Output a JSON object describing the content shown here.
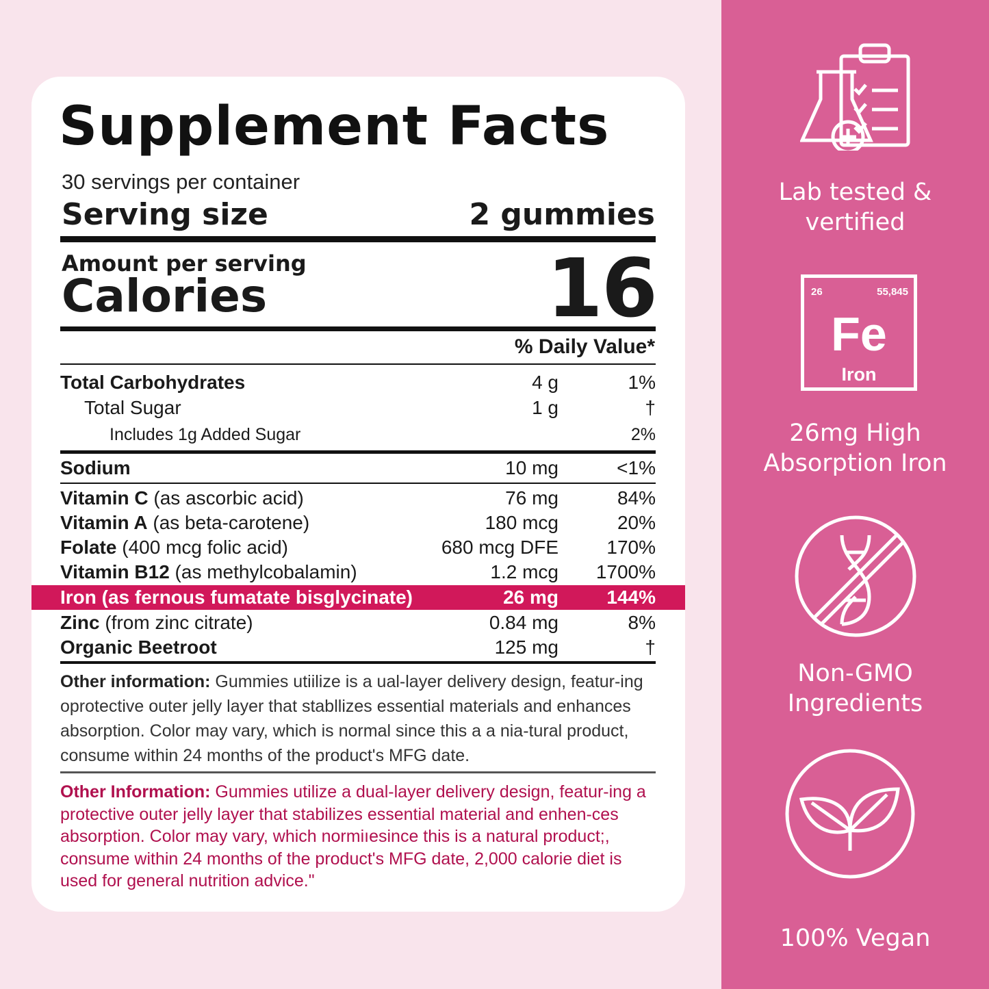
{
  "facts": {
    "title": "Supplement Facts",
    "servings": "30 servings per container",
    "serving_size_label": "Serving size",
    "serving_size_value": "2 gummies",
    "amount_per_serving": "Amount per serving",
    "calories_label": "Calories",
    "calories_value": "16",
    "daily_value_header": "% Daily Value*",
    "rows": [
      {
        "bold": "Total Carbohydrates",
        "rest": "",
        "amount": "4 g",
        "dv": "1%"
      },
      {
        "bold": "",
        "rest": "Total Sugar",
        "amount": "1 g",
        "dv": "†"
      },
      {
        "bold": "",
        "rest": "Includes 1g Added Sugar",
        "amount": "",
        "dv": "2%"
      },
      {
        "bold": "Sodium",
        "rest": "",
        "amount": "10 mg",
        "dv": "<1%"
      },
      {
        "bold": "Vitamin C",
        "rest": " (as ascorbic acid)",
        "amount": "76 mg",
        "dv": "84%"
      },
      {
        "bold": "Vitamin A",
        "rest": " (as beta-carotene)",
        "amount": "180 mcg",
        "dv": "20%"
      },
      {
        "bold": "Folate",
        "rest": " (400 mcg folic acid)",
        "amount": "680 mcg DFE",
        "dv": "170%"
      },
      {
        "bold": "Vitamin B12",
        "rest": " (as methylcobalamin)",
        "amount": "1.2 mcg",
        "dv": "1700%"
      },
      {
        "bold": "Iron (as fernous fumatate bisglycinate)",
        "rest": "",
        "amount": "26 mg",
        "dv": "144%"
      },
      {
        "bold": "Zinc",
        "rest": " (from zinc citrate)",
        "amount": "0.84 mg",
        "dv": "8%"
      },
      {
        "bold": "Organic Beetroot",
        "rest": "",
        "amount": "125 mg",
        "dv": "†"
      }
    ],
    "other_info_1_label": "Other information:",
    "other_info_1_text": " Gummies utiilize is a ual-layer delivery design, featur-ing oprotective outer jelly layer that stabllizes essential materials and enhances absorption. Color may vary, which is normal since this a a nia-tural product, consume within 24 months of the product's MFG date.",
    "other_info_2_label": "Other Information:",
    "other_info_2_text": " Gummies utilize a dual-layer delivery design, featur-ing a protective outer jelly layer that stabilizes essential material and enhen-ces absorption. Color may vary, which normiıesince this is a natural product;, consume within 24 months of the product's MFG date, 2,000 calorie diet is used for general nutrition advice.\""
  },
  "panel": {
    "features": [
      {
        "icon": "lab-clipboard-icon",
        "label_1": "Lab tested &",
        "label_2": "vertified"
      },
      {
        "icon": "iron-element-icon",
        "label_1": "26mg High",
        "label_2": "Absorption Iron"
      },
      {
        "icon": "non-gmo-icon",
        "label_1": "Non-GMO",
        "label_2": "Ingredients"
      },
      {
        "icon": "leaf-icon",
        "label_1": "100% Vegan",
        "label_2": ""
      }
    ],
    "element": {
      "number": "26",
      "mass": "55,845",
      "symbol": "Fe",
      "name": "Iron"
    }
  },
  "colors": {
    "background": "#f9e4ec",
    "panel": "#d95f95",
    "highlight": "#d1185a",
    "info_text": "#b0104e"
  }
}
